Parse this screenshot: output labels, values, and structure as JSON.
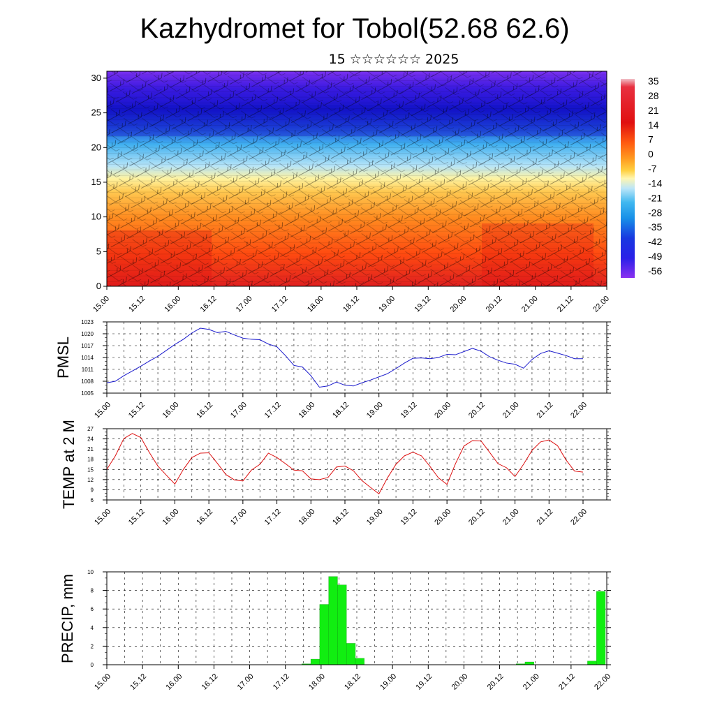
{
  "header": {
    "title": "Kazhydromet for Tobol(52.68 62.6)",
    "subtitle": "15 ☆☆☆☆☆☆ 2025"
  },
  "colors": {
    "pmsl_line": "#1a1acc",
    "temp_line": "#dd1111",
    "precip_bar": "#11ee11"
  },
  "chart_data": [
    {
      "type": "heatmap",
      "title": "",
      "x_tick_labels": [
        "15.00",
        "15.12",
        "16.00",
        "16.12",
        "17.00",
        "17.12",
        "18.00",
        "18.12",
        "19.00",
        "19.12",
        "20.00",
        "20.12",
        "21.00",
        "21.12",
        "22.00"
      ],
      "y_ticks": [
        0,
        5,
        10,
        15,
        20,
        25,
        30
      ],
      "ylim": [
        0,
        31
      ],
      "colorbar": {
        "labels": [
          "35",
          "28",
          "21",
          "14",
          "7",
          "0",
          "-7",
          "-14",
          "-21",
          "-28",
          "-35",
          "-42",
          "-49",
          "-56"
        ]
      },
      "overlay": "wind barbs"
    },
    {
      "type": "line",
      "ylabel": "PMSL",
      "ylim": [
        1005,
        1023
      ],
      "y_ticks": [
        1005,
        1008,
        1011,
        1014,
        1017,
        1020,
        1023
      ],
      "x_tick_labels": [
        "15.00",
        "15.12",
        "16.00",
        "16.12",
        "17.00",
        "17.12",
        "18.00",
        "18.12",
        "19.00",
        "19.12",
        "20.00",
        "20.12",
        "21.00",
        "21.12",
        "22.00"
      ],
      "grid": true,
      "x_hours": [
        0,
        3,
        6,
        9,
        12,
        15,
        18,
        21,
        24,
        27,
        30,
        33,
        36,
        39,
        42,
        45,
        48,
        51,
        54,
        57,
        60,
        63,
        66,
        69,
        72,
        75,
        78,
        81,
        84,
        87,
        90,
        93,
        96,
        99,
        102,
        105,
        108,
        111,
        114,
        117,
        120,
        123,
        126,
        129,
        132,
        135,
        138,
        141,
        144,
        147,
        150,
        153,
        156,
        159,
        162,
        165,
        168
      ],
      "values": [
        1007.6,
        1008.0,
        1009.4,
        1010.6,
        1011.8,
        1013.1,
        1014.3,
        1015.8,
        1017.3,
        1018.6,
        1020.2,
        1021.4,
        1021.1,
        1020.3,
        1020.6,
        1019.7,
        1018.9,
        1018.6,
        1018.5,
        1017.4,
        1016.7,
        1014.5,
        1012.0,
        1011.6,
        1009.4,
        1006.5,
        1006.8,
        1007.8,
        1007.0,
        1006.8,
        1007.6,
        1008.3,
        1009.1,
        1009.9,
        1011.2,
        1012.6,
        1013.8,
        1013.9,
        1013.7,
        1014.0,
        1014.8,
        1014.7,
        1015.5,
        1016.3,
        1015.6,
        1014.2,
        1013.3,
        1012.6,
        1012.3,
        1011.3,
        1013.5,
        1015.0,
        1015.7,
        1015.1,
        1014.5,
        1013.7,
        1013.7
      ]
    },
    {
      "type": "line",
      "ylabel": "TEMP at 2 M",
      "ylim": [
        6,
        27
      ],
      "y_ticks": [
        6,
        9,
        12,
        15,
        18,
        21,
        24,
        27
      ],
      "x_tick_labels": [
        "15.00",
        "15.12",
        "16.00",
        "16.12",
        "17.00",
        "17.12",
        "18.00",
        "18.12",
        "19.00",
        "19.12",
        "20.00",
        "20.12",
        "21.00",
        "21.12",
        "22.00"
      ],
      "grid": true,
      "x_hours": [
        0,
        3,
        6,
        9,
        12,
        15,
        18,
        21,
        24,
        27,
        30,
        33,
        36,
        39,
        42,
        45,
        48,
        51,
        54,
        57,
        60,
        63,
        66,
        69,
        72,
        75,
        78,
        81,
        84,
        87,
        90,
        93,
        96,
        99,
        102,
        105,
        108,
        111,
        114,
        117,
        120,
        123,
        126,
        129,
        132,
        135,
        138,
        141,
        144,
        147,
        150,
        153,
        156,
        159,
        162,
        165,
        168
      ],
      "values": [
        15.0,
        19.0,
        24.1,
        25.6,
        24.4,
        20.0,
        16.0,
        13.3,
        10.7,
        15.0,
        18.5,
        19.8,
        19.9,
        16.8,
        13.5,
        11.9,
        11.6,
        14.8,
        16.5,
        19.8,
        18.5,
        16.7,
        14.8,
        14.6,
        12.2,
        12.0,
        12.6,
        15.7,
        16.0,
        14.6,
        11.7,
        9.7,
        7.8,
        12.5,
        16.5,
        19.0,
        20.1,
        19.0,
        15.9,
        12.5,
        10.6,
        16.7,
        21.9,
        23.5,
        23.4,
        20.1,
        16.7,
        15.5,
        12.9,
        16.5,
        20.6,
        23.1,
        23.7,
        22.0,
        17.8,
        14.5,
        14.2
      ]
    },
    {
      "type": "bar",
      "ylabel": "PRECIP, mm",
      "ylim": [
        0,
        10
      ],
      "y_ticks": [
        0,
        2,
        4,
        6,
        8,
        10
      ],
      "x_tick_labels": [
        "15.00",
        "15.12",
        "16.00",
        "16.12",
        "17.00",
        "17.12",
        "18.00",
        "18.12",
        "19.00",
        "19.12",
        "20.00",
        "20.12",
        "21.00",
        "21.12",
        "22.00"
      ],
      "grid": true,
      "x_hours": [
        66,
        69,
        72,
        75,
        78,
        81,
        84,
        138,
        141,
        162,
        165
      ],
      "values": [
        0.1,
        0.6,
        6.5,
        9.5,
        8.6,
        2.3,
        0.7,
        0.1,
        0.3,
        0.4,
        7.9
      ]
    }
  ]
}
